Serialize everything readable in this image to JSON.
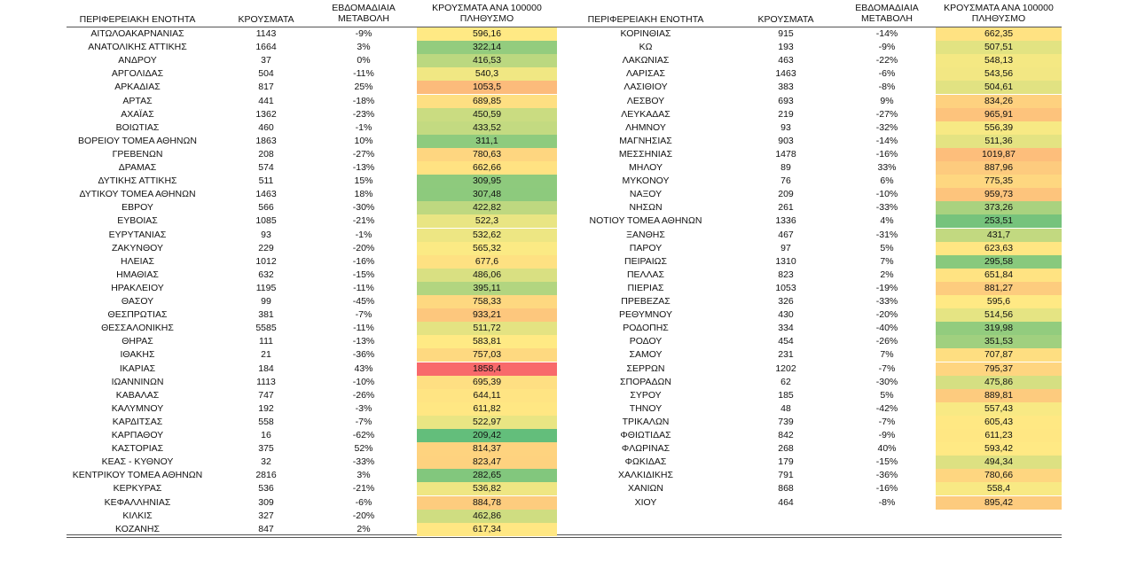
{
  "tables": [
    {
      "header": [
        "ΠΕΡΙΦΕΡΕΙΑΚΗ ΕΝΟΤΗΤΑ",
        "ΚΡΟΥΣΜΑΤΑ",
        "ΕΒΔΟΜΑΔΙΑΙΑ ΜΕΤΑΒΟΛΗ",
        "ΚΡΟΥΣΜΑΤΑ ΑΝΑ 100000 ΠΛΗΘΥΣΜΟ"
      ],
      "rows": [
        [
          "ΑΙΤΩΛΟΑΚΑΡΝΑΝΙΑΣ",
          1143,
          "-9%",
          "596,16"
        ],
        [
          "ΑΝΑΤΟΛΙΚΗΣ ΑΤΤΙΚΗΣ",
          1664,
          "3%",
          "322,14"
        ],
        [
          "ΑΝΔΡΟΥ",
          37,
          "0%",
          "416,53"
        ],
        [
          "ΑΡΓΟΛΙΔΑΣ",
          504,
          "-11%",
          "540,3"
        ],
        [
          "ΑΡΚΑΔΙΑΣ",
          817,
          "25%",
          "1053,5"
        ],
        [
          "ΑΡΤΑΣ",
          441,
          "-18%",
          "689,85"
        ],
        [
          "ΑΧΑΪΑΣ",
          1362,
          "-23%",
          "450,59"
        ],
        [
          "ΒΟΙΩΤΙΑΣ",
          460,
          "-1%",
          "433,52"
        ],
        [
          "ΒΟΡΕΙΟΥ ΤΟΜΕΑ ΑΘΗΝΩΝ",
          1863,
          "10%",
          "311,1"
        ],
        [
          "ΓΡΕΒΕΝΩΝ",
          208,
          "-27%",
          "780,63"
        ],
        [
          "ΔΡΑΜΑΣ",
          574,
          "-13%",
          "662,66"
        ],
        [
          "ΔΥΤΙΚΗΣ ΑΤΤΙΚΗΣ",
          511,
          "15%",
          "309,95"
        ],
        [
          "ΔΥΤΙΚΟΥ ΤΟΜΕΑ ΑΘΗΝΩΝ",
          1463,
          "18%",
          "307,48"
        ],
        [
          "ΕΒΡΟΥ",
          566,
          "-30%",
          "422,82"
        ],
        [
          "ΕΥΒΟΙΑΣ",
          1085,
          "-21%",
          "522,3"
        ],
        [
          "ΕΥΡΥΤΑΝΙΑΣ",
          93,
          "-1%",
          "532,62"
        ],
        [
          "ΖΑΚΥΝΘΟΥ",
          229,
          "-20%",
          "565,32"
        ],
        [
          "ΗΛΕΙΑΣ",
          1012,
          "-16%",
          "677,6"
        ],
        [
          "ΗΜΑΘΙΑΣ",
          632,
          "-15%",
          "486,06"
        ],
        [
          "ΗΡΑΚΛΕΙΟΥ",
          1195,
          "-11%",
          "395,11"
        ],
        [
          "ΘΑΣΟΥ",
          99,
          "-45%",
          "758,33"
        ],
        [
          "ΘΕΣΠΡΩΤΙΑΣ",
          381,
          "-7%",
          "933,21"
        ],
        [
          "ΘΕΣΣΑΛΟΝΙΚΗΣ",
          5585,
          "-11%",
          "511,72"
        ],
        [
          "ΘΗΡΑΣ",
          111,
          "-13%",
          "583,81"
        ],
        [
          "ΙΘΑΚΗΣ",
          21,
          "-36%",
          "757,03"
        ],
        [
          "ΙΚΑΡΙΑΣ",
          184,
          "43%",
          "1858,4"
        ],
        [
          "ΙΩΑΝΝΙΝΩΝ",
          1113,
          "-10%",
          "695,39"
        ],
        [
          "ΚΑΒΑΛΑΣ",
          747,
          "-26%",
          "644,11"
        ],
        [
          "ΚΑΛΥΜΝΟΥ",
          192,
          "-3%",
          "611,82"
        ],
        [
          "ΚΑΡΔΙΤΣΑΣ",
          558,
          "-7%",
          "522,97"
        ],
        [
          "ΚΑΡΠΑΘΟΥ",
          16,
          "-62%",
          "209,42"
        ],
        [
          "ΚΑΣΤΟΡΙΑΣ",
          375,
          "52%",
          "814,37"
        ],
        [
          "ΚΕΑΣ - ΚΥΘΝΟΥ",
          32,
          "-33%",
          "823,47"
        ],
        [
          "ΚΕΝΤΡΙΚΟΥ ΤΟΜΕΑ ΑΘΗΝΩΝ",
          2816,
          "3%",
          "282,65"
        ],
        [
          "ΚΕΡΚΥΡΑΣ",
          536,
          "-21%",
          "536,82"
        ],
        [
          "ΚΕΦΑΛΛΗΝΙΑΣ",
          309,
          "-6%",
          "884,78"
        ],
        [
          "ΚΙΛΚΙΣ",
          327,
          "-20%",
          "462,86"
        ],
        [
          "ΚΟΖΑΝΗΣ",
          847,
          "2%",
          "617,34"
        ]
      ]
    },
    {
      "header": [
        "ΠΕΡΙΦΕΡΕΙΑΚΗ ΕΝΟΤΗΤΑ",
        "ΚΡΟΥΣΜΑΤΑ",
        "ΕΒΔΟΜΑΔΙΑΙΑ ΜΕΤΑΒΟΛΗ",
        "ΚΡΟΥΣΜΑΤΑ ΑΝΑ 100000 ΠΛΗΘΥΣΜΟ"
      ],
      "rows": [
        [
          "ΚΟΡΙΝΘΙΑΣ",
          915,
          "-14%",
          "662,35"
        ],
        [
          "ΚΩ",
          193,
          "-9%",
          "507,51"
        ],
        [
          "ΛΑΚΩΝΙΑΣ",
          463,
          "-22%",
          "548,13"
        ],
        [
          "ΛΑΡΙΣΑΣ",
          1463,
          "-6%",
          "543,56"
        ],
        [
          "ΛΑΣΙΘΙΟΥ",
          383,
          "-8%",
          "504,61"
        ],
        [
          "ΛΕΣΒΟΥ",
          693,
          "9%",
          "834,26"
        ],
        [
          "ΛΕΥΚΑΔΑΣ",
          219,
          "-27%",
          "965,91"
        ],
        [
          "ΛΗΜΝΟΥ",
          93,
          "-32%",
          "556,39"
        ],
        [
          "ΜΑΓΝΗΣΙΑΣ",
          903,
          "-14%",
          "511,36"
        ],
        [
          "ΜΕΣΣΗΝΙΑΣ",
          1478,
          "-16%",
          "1019,87"
        ],
        [
          "ΜΗΛΟΥ",
          89,
          "33%",
          "887,96"
        ],
        [
          "ΜΥΚΟΝΟΥ",
          76,
          "6%",
          "775,35"
        ],
        [
          "ΝΑΞΟΥ",
          209,
          "-10%",
          "959,73"
        ],
        [
          "ΝΗΣΩΝ",
          261,
          "-33%",
          "373,26"
        ],
        [
          "ΝΟΤΙΟΥ ΤΟΜΕΑ ΑΘΗΝΩΝ",
          1336,
          "4%",
          "253,51"
        ],
        [
          "ΞΑΝΘΗΣ",
          467,
          "-31%",
          "431,7"
        ],
        [
          "ΠΑΡΟΥ",
          97,
          "5%",
          "623,63"
        ],
        [
          "ΠΕΙΡΑΙΩΣ",
          1310,
          "7%",
          "295,58"
        ],
        [
          "ΠΕΛΛΑΣ",
          823,
          "2%",
          "651,84"
        ],
        [
          "ΠΙΕΡΙΑΣ",
          1053,
          "-19%",
          "881,27"
        ],
        [
          "ΠΡΕΒΕΖΑΣ",
          326,
          "-33%",
          "595,6"
        ],
        [
          "ΡΕΘΥΜΝΟΥ",
          430,
          "-20%",
          "514,56"
        ],
        [
          "ΡΟΔΟΠΗΣ",
          334,
          "-40%",
          "319,98"
        ],
        [
          "ΡΟΔΟΥ",
          454,
          "-26%",
          "351,53"
        ],
        [
          "ΣΑΜΟΥ",
          231,
          "7%",
          "707,87"
        ],
        [
          "ΣΕΡΡΩΝ",
          1202,
          "-7%",
          "795,37"
        ],
        [
          "ΣΠΟΡΑΔΩΝ",
          62,
          "-30%",
          "475,86"
        ],
        [
          "ΣΥΡΟΥ",
          185,
          "5%",
          "889,81"
        ],
        [
          "ΤΗΝΟΥ",
          48,
          "-42%",
          "557,43"
        ],
        [
          "ΤΡΙΚΑΛΩΝ",
          739,
          "-7%",
          "605,43"
        ],
        [
          "ΦΘΙΩΤΙΔΑΣ",
          842,
          "-9%",
          "611,23"
        ],
        [
          "ΦΛΩΡΙΝΑΣ",
          268,
          "40%",
          "593,42"
        ],
        [
          "ΦΩΚΙΔΑΣ",
          179,
          "-15%",
          "494,34"
        ],
        [
          "ΧΑΛΚΙΔΙΚΗΣ",
          791,
          "-36%",
          "780,66"
        ],
        [
          "ΧΑΝΙΩΝ",
          868,
          "-16%",
          "558,4"
        ],
        [
          "ΧΙΟΥ",
          464,
          "-8%",
          "895,42"
        ]
      ]
    }
  ]
}
